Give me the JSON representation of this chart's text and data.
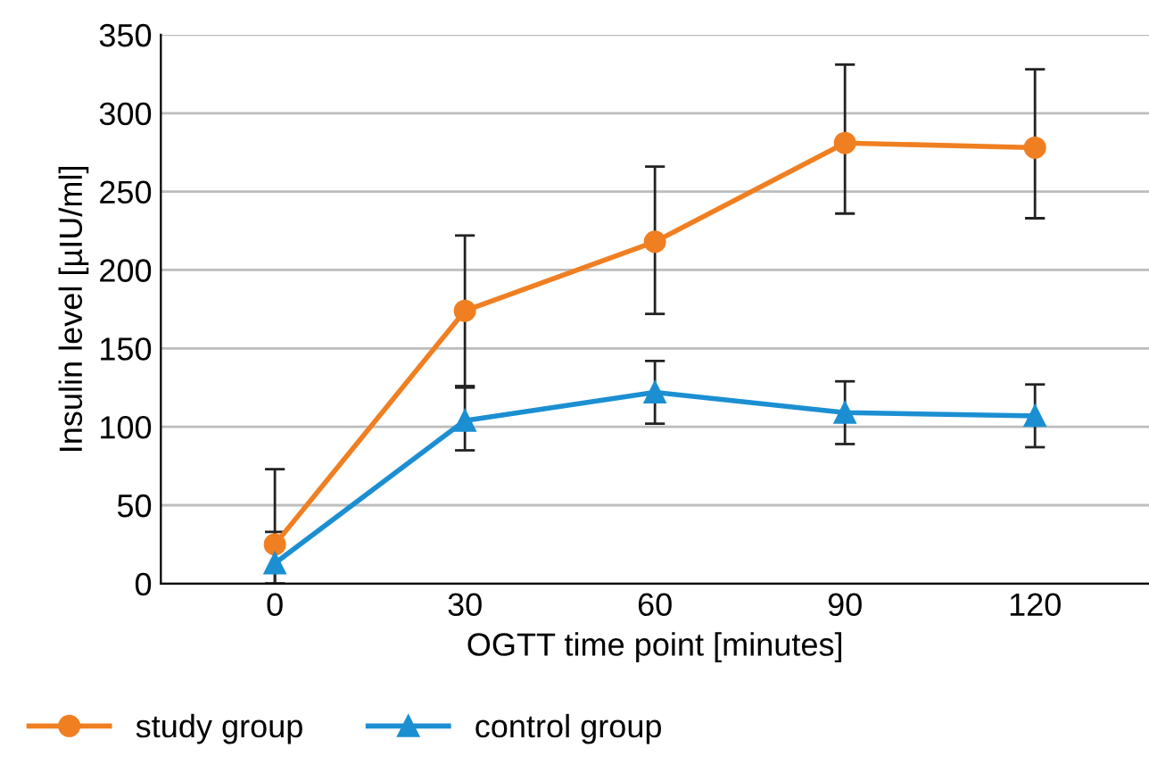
{
  "chart_data": {
    "type": "line",
    "xlabel": "OGTT time point [minutes]",
    "ylabel": "Insulin level [µIU/ml]",
    "categories": [
      "0",
      "30",
      "60",
      "90",
      "120"
    ],
    "series": [
      {
        "name": "study group",
        "color": "#f07f22",
        "marker": "circle",
        "values": [
          25,
          174,
          218,
          281,
          278
        ],
        "errors": [
          [
            0,
            73
          ],
          [
            126,
            222
          ],
          [
            172,
            266
          ],
          [
            236,
            331
          ],
          [
            233,
            328
          ]
        ]
      },
      {
        "name": "control group",
        "color": "#1b8fd2",
        "marker": "triangle",
        "values": [
          13,
          104,
          122,
          109,
          107
        ],
        "errors": [
          [
            0,
            33
          ],
          [
            85,
            125
          ],
          [
            102,
            142
          ],
          [
            89,
            129
          ],
          [
            87,
            127
          ]
        ]
      }
    ],
    "ylim": [
      0,
      350
    ],
    "yticks": [
      0,
      50,
      100,
      150,
      200,
      250,
      300,
      350
    ],
    "grid": "y",
    "legend": "bottom left",
    "line_style": "solid"
  }
}
